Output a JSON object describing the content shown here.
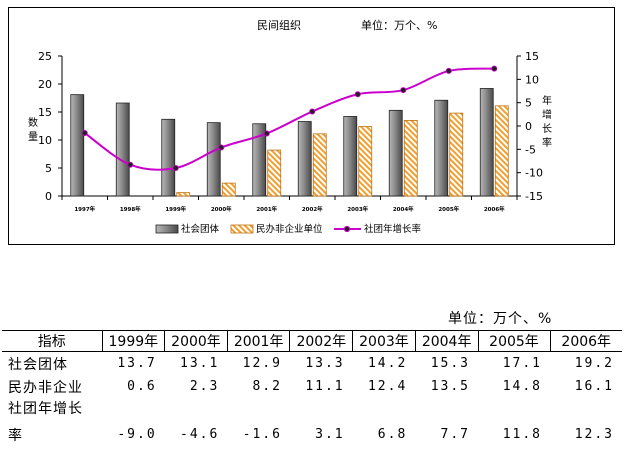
{
  "chart_data": {
    "type": "bar",
    "title": "民间组织",
    "unit_label": "单位：万个、%",
    "categories": [
      "1997年",
      "1998年",
      "1999年",
      "2000年",
      "2001年",
      "2002年",
      "2003年",
      "2004年",
      "2005年",
      "2006年"
    ],
    "series": [
      {
        "name": "社会团体",
        "kind": "bar",
        "axis": "left",
        "color": "#808080",
        "values": [
          18.1,
          16.6,
          13.7,
          13.1,
          12.9,
          13.3,
          14.2,
          15.3,
          17.1,
          19.2
        ]
      },
      {
        "name": "民办非企业单位",
        "kind": "bar",
        "axis": "left",
        "color": "#f0a030",
        "values": [
          0,
          0,
          0.6,
          2.3,
          8.2,
          11.1,
          12.4,
          13.5,
          14.8,
          16.1
        ]
      },
      {
        "name": "社团年增长率",
        "kind": "line",
        "axis": "right",
        "color": "#cc00cc",
        "values": [
          -1.5,
          -8.3,
          -9.0,
          -4.6,
          -1.6,
          3.1,
          6.8,
          7.7,
          11.8,
          12.3
        ]
      }
    ],
    "y_left": {
      "label": "数量",
      "ylim": [
        0,
        25
      ],
      "ticks": [
        0,
        5,
        10,
        15,
        20,
        25
      ]
    },
    "y_right": {
      "label": "年增长率",
      "ylim": [
        -15,
        15
      ],
      "ticks": [
        -15,
        -10,
        -5,
        0,
        5,
        10,
        15
      ]
    },
    "grid": false,
    "legend_position": "bottom"
  },
  "table": {
    "unit": "单位：万个、%",
    "header": [
      "指标",
      "1999年",
      "2000年",
      "2001年",
      "2002年",
      "2003年",
      "2004年",
      "2005年",
      "2006年"
    ],
    "rows": [
      {
        "label": "社会团体",
        "values": [
          "13.7",
          "13.1",
          "12.9",
          "13.3",
          "14.2",
          "15.3",
          "17.1",
          "19.2"
        ]
      },
      {
        "label": "民办非企业",
        "values": [
          "0.6",
          "2.3",
          "8.2",
          "11.1",
          "12.4",
          "13.5",
          "14.8",
          "16.1"
        ]
      },
      {
        "label": "社团年增长",
        "values": [
          "",
          "",
          "",
          "",
          "",
          "",
          "",
          ""
        ]
      },
      {
        "label": "率",
        "values": [
          "-9.0",
          "-4.6",
          "-1.6",
          "3.1",
          "6.8",
          "7.7",
          "11.8",
          "12.3"
        ]
      }
    ]
  }
}
